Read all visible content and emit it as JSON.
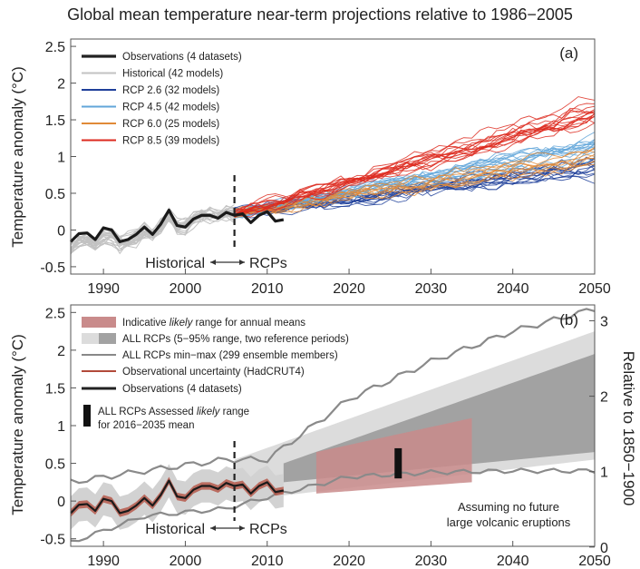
{
  "title": "Global mean temperature near-term projections relative to 1986−2005",
  "chart_data": [
    {
      "panel_label": "(a)",
      "type": "line",
      "xlim": [
        1986,
        2050
      ],
      "ylim": [
        -0.6,
        2.6
      ],
      "x_ticks": [
        "1990",
        "2000",
        "2010",
        "2020",
        "2030",
        "2040",
        "2050"
      ],
      "y_ticks": [
        "-0.5",
        "0",
        "0.5",
        "1",
        "1.5",
        "2",
        "2.5"
      ],
      "ylabel": "Temperature anomaly (°C)",
      "divider_year": 2006,
      "annotation_left": "Historical",
      "annotation_right": "RCPs",
      "legend": [
        {
          "label": "Observations (4 datasets)",
          "color": "#222222"
        },
        {
          "label": "Historical (42 models)",
          "color": "#c2c2c2"
        },
        {
          "label": "RCP 2.6 (32 models)",
          "color": "#1f3f9a"
        },
        {
          "label": "RCP 4.5 (42 models)",
          "color": "#62a6d9"
        },
        {
          "label": "RCP 6.0 (25 models)",
          "color": "#e08a38"
        },
        {
          "label": "RCP 8.5 (39 models)",
          "color": "#dd2a1f"
        }
      ],
      "series": [
        {
          "name": "Observations",
          "x": [
            1986,
            1987,
            1988,
            1989,
            1990,
            1991,
            1992,
            1993,
            1994,
            1995,
            1996,
            1997,
            1998,
            1999,
            2000,
            2001,
            2002,
            2003,
            2004,
            2005,
            2006,
            2007,
            2008,
            2009,
            2010,
            2011,
            2012
          ],
          "values": [
            -0.16,
            -0.05,
            -0.04,
            -0.13,
            0.03,
            0.0,
            -0.16,
            -0.13,
            -0.06,
            0.04,
            -0.06,
            0.08,
            0.27,
            0.06,
            0.04,
            0.15,
            0.2,
            0.2,
            0.16,
            0.24,
            0.2,
            0.22,
            0.1,
            0.2,
            0.25,
            0.12,
            0.14
          ]
        },
        {
          "name": "RCP 2.6 mean",
          "x": [
            2006,
            2050
          ],
          "values": [
            0.22,
            0.85
          ]
        },
        {
          "name": "RCP 4.5 mean",
          "x": [
            2006,
            2050
          ],
          "values": [
            0.22,
            1.15
          ]
        },
        {
          "name": "RCP 6.0 mean",
          "x": [
            2006,
            2050
          ],
          "values": [
            0.22,
            1.05
          ]
        },
        {
          "name": "RCP 8.5 mean",
          "x": [
            2006,
            2050
          ],
          "values": [
            0.22,
            1.6
          ]
        }
      ]
    },
    {
      "panel_label": "(b)",
      "type": "area",
      "xlim": [
        1986,
        2050
      ],
      "ylim": [
        -0.6,
        2.6
      ],
      "x_ticks": [
        "1990",
        "2000",
        "2010",
        "2020",
        "2030",
        "2040",
        "2050"
      ],
      "y_ticks": [
        "-0.5",
        "0",
        "0.5",
        "1",
        "1.5",
        "2",
        "2.5"
      ],
      "y2_ticks": [
        "0",
        "1",
        "2",
        "3"
      ],
      "y2_offset": 0.61,
      "ylabel": "Temperature anomaly (°C)",
      "y2label": "Relative to 1850−1900",
      "divider_year": 2006,
      "annotation_left": "Historical",
      "annotation_right": "RCPs",
      "note_lines": [
        "Assuming no future",
        "large volcanic eruptions"
      ],
      "legend": [
        {
          "label_pre": "Indicative ",
          "label_em": "likely",
          "label_post": " range for annual means",
          "color": "#c99a9a"
        },
        {
          "label": "ALL RCPs (5−95% range, two reference periods)",
          "color": "#a0a0a0"
        },
        {
          "label": "ALL RCPs min−max (299 ensemble members)",
          "color": "#888888"
        },
        {
          "label": "Observational uncertainty (HadCRUT4)",
          "color": "#b24a3a"
        },
        {
          "label": "Observations (4 datasets)",
          "color": "#222222"
        },
        {
          "label_pre": "ALL RCPs Assessed ",
          "label_em": "likely",
          "label_post": " range",
          "label_line2": "for 2016−2035 mean",
          "color": "#111111"
        }
      ],
      "ranges": {
        "light_5_95": {
          "x": [
            2006,
            2050
          ],
          "low": [
            0.0,
            0.55
          ],
          "high": [
            0.55,
            2.25
          ]
        },
        "dark_5_95": {
          "x": [
            2012,
            2050
          ],
          "low": [
            0.25,
            0.65
          ],
          "high": [
            0.5,
            1.95
          ]
        },
        "min_max": {
          "x": [
            1986,
            1995,
            2005,
            2010,
            2020,
            2030,
            2040,
            2050
          ],
          "low": [
            -0.55,
            -0.2,
            -0.1,
            0.05,
            0.32,
            0.38,
            0.4,
            0.4
          ],
          "high": [
            0.25,
            0.4,
            0.55,
            0.55,
            1.35,
            1.85,
            2.25,
            2.55
          ]
        },
        "indicative_likely": {
          "x": [
            2016,
            2035
          ],
          "low": [
            0.1,
            0.25
          ],
          "high": [
            0.65,
            1.1
          ]
        },
        "assessed_likely_2016_2035": {
          "x": 2026,
          "low": 0.3,
          "high": 0.7
        }
      },
      "series": [
        {
          "name": "Observations",
          "x": [
            1986,
            1987,
            1988,
            1989,
            1990,
            1991,
            1992,
            1993,
            1994,
            1995,
            1996,
            1997,
            1998,
            1999,
            2000,
            2001,
            2002,
            2003,
            2004,
            2005,
            2006,
            2007,
            2008,
            2009,
            2010,
            2011,
            2012
          ],
          "values": [
            -0.16,
            -0.05,
            -0.04,
            -0.13,
            0.03,
            0.0,
            -0.16,
            -0.13,
            -0.06,
            0.04,
            -0.06,
            0.08,
            0.27,
            0.06,
            0.04,
            0.15,
            0.2,
            0.2,
            0.16,
            0.24,
            0.2,
            0.22,
            0.1,
            0.2,
            0.25,
            0.12,
            0.14
          ]
        }
      ]
    }
  ]
}
